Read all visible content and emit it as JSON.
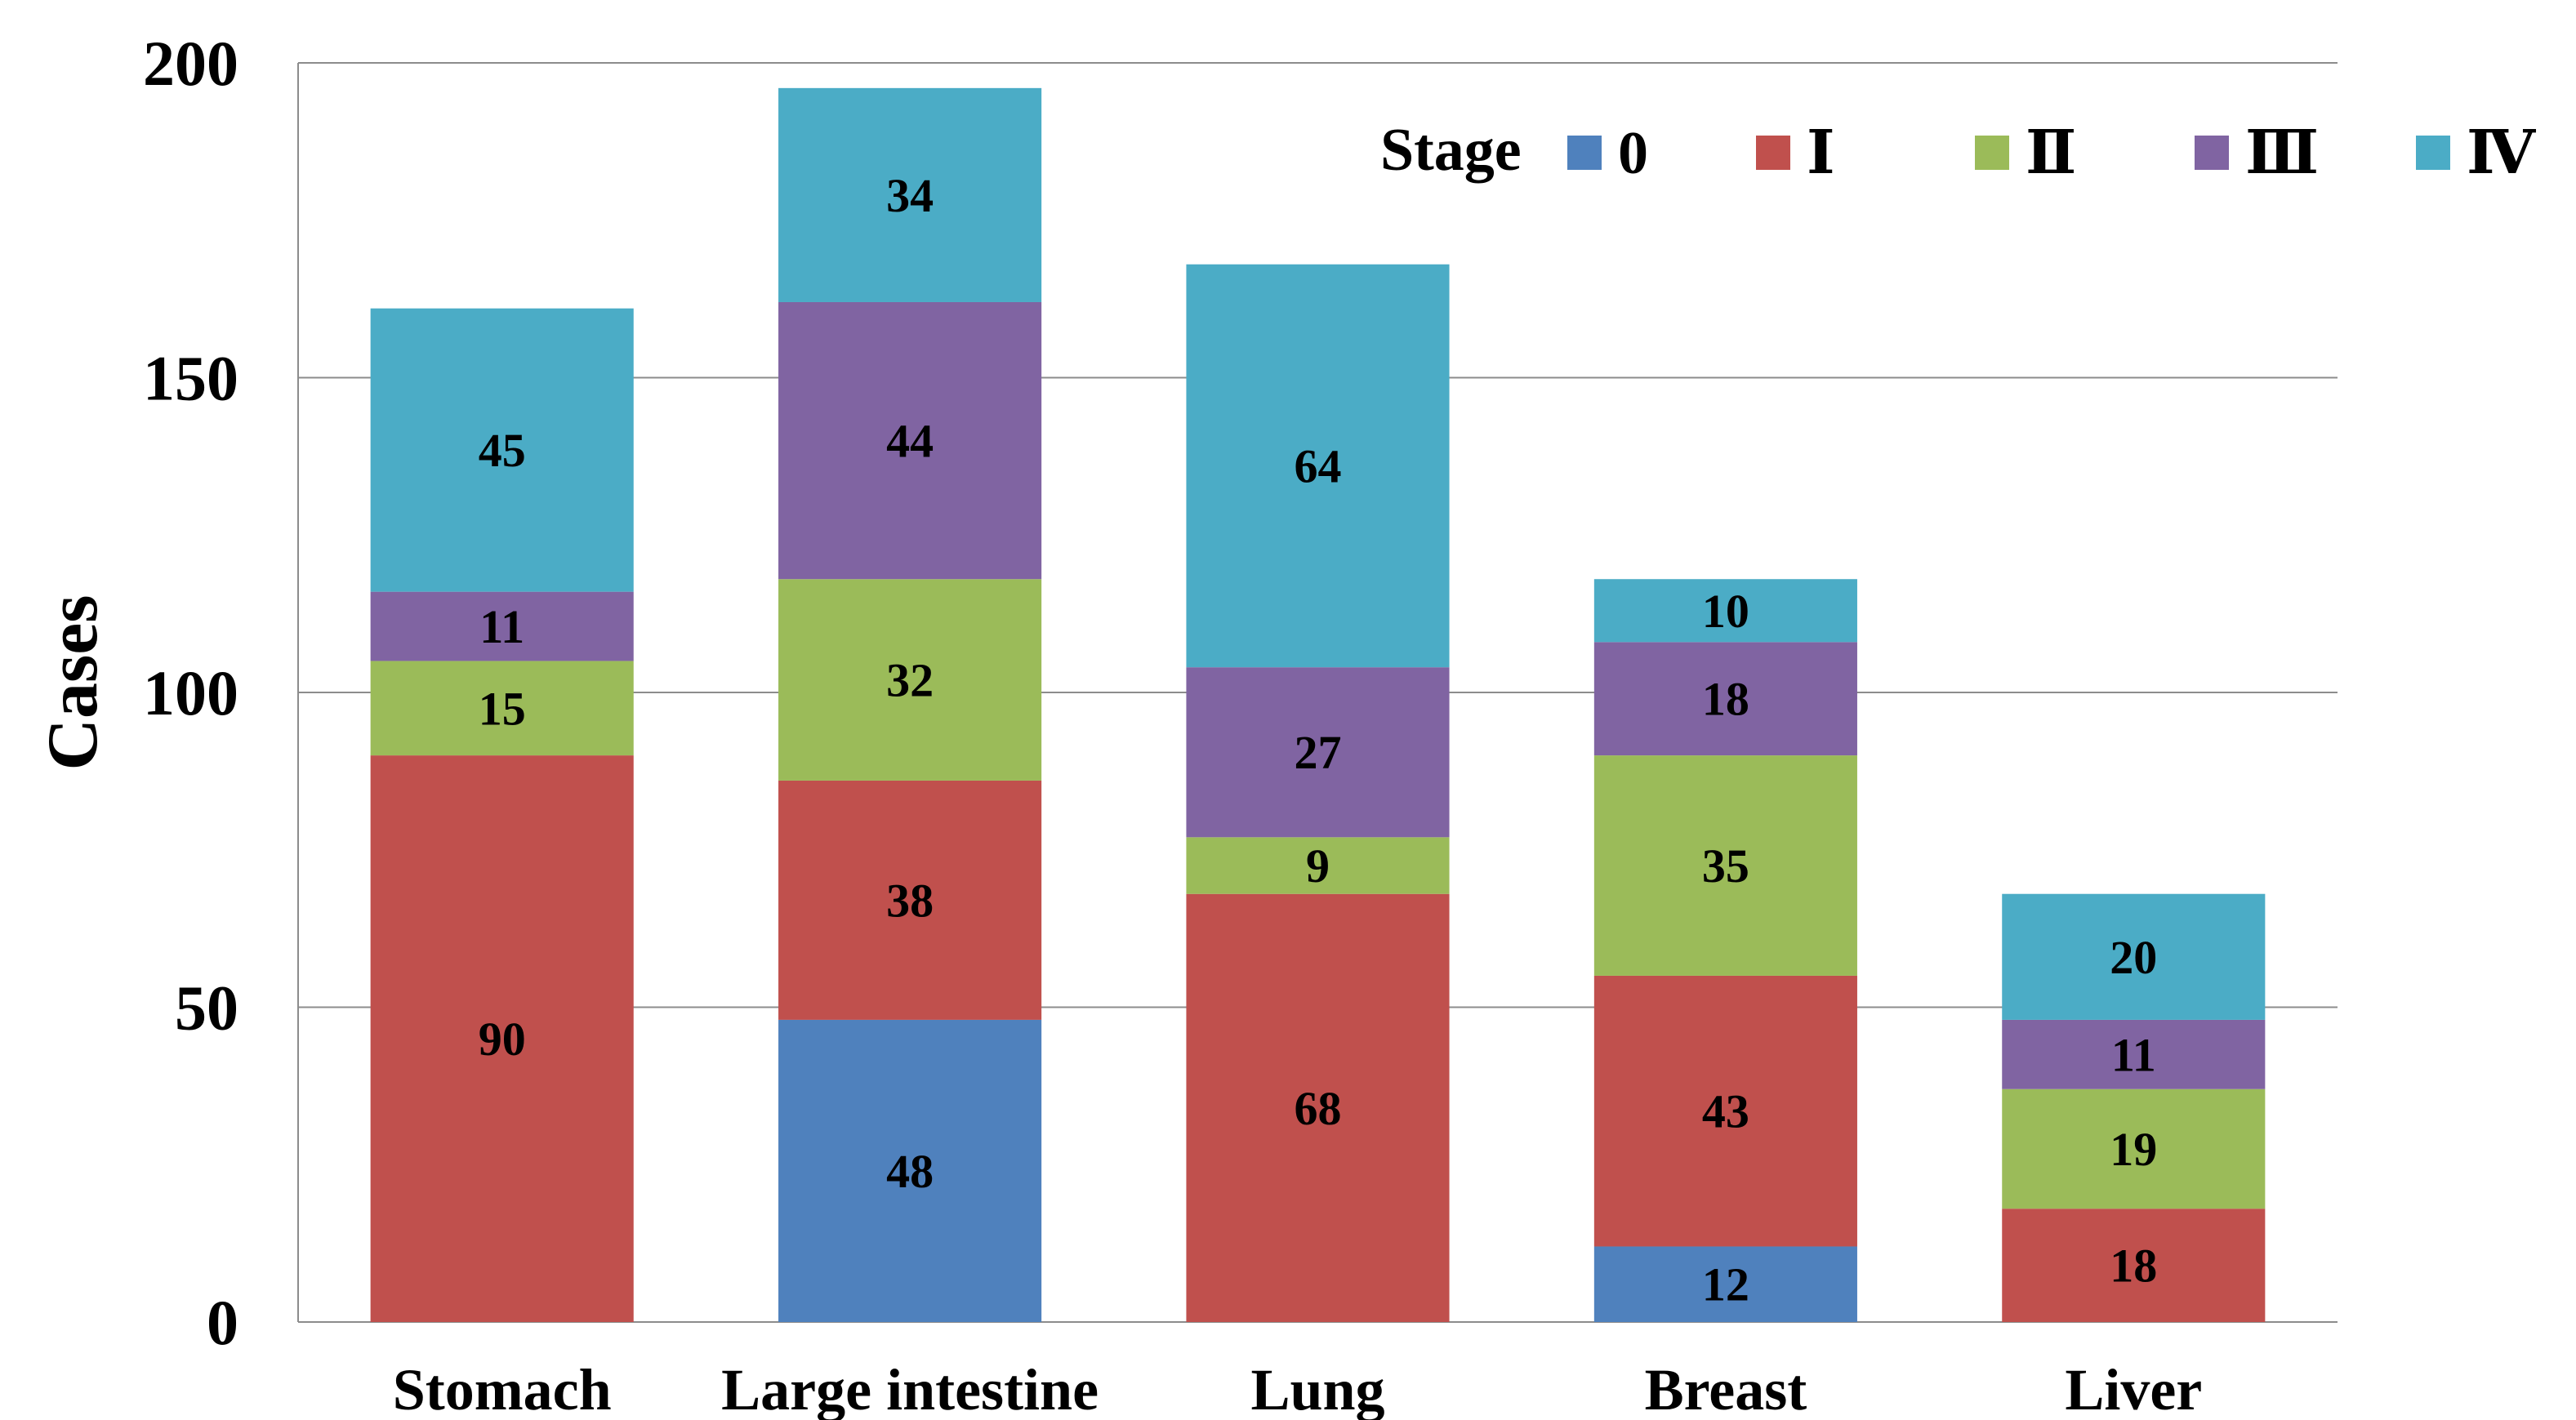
{
  "chart_data": {
    "type": "bar",
    "stacked": true,
    "title": "",
    "xlabel": "",
    "ylabel": "Cases",
    "ylim": [
      0,
      200
    ],
    "yticks": [
      0,
      50,
      100,
      150,
      200
    ],
    "grid": true,
    "legend_title": "Stage",
    "legend_position": "top-right",
    "categories": [
      "Stomach",
      "Large intestine",
      "Lung",
      "Breast",
      "Liver"
    ],
    "series": [
      {
        "name": "0",
        "color": "#4F81BD",
        "values": [
          0,
          48,
          0,
          12,
          0
        ]
      },
      {
        "name": "Ⅰ",
        "color": "#C0504D",
        "values": [
          90,
          38,
          68,
          43,
          18
        ]
      },
      {
        "name": "Ⅱ",
        "color": "#9BBB59",
        "values": [
          15,
          32,
          9,
          35,
          19
        ]
      },
      {
        "name": "Ⅲ",
        "color": "#8064A2",
        "values": [
          11,
          44,
          27,
          18,
          11
        ]
      },
      {
        "name": "Ⅳ",
        "color": "#4BACC6",
        "values": [
          45,
          34,
          64,
          10,
          20
        ]
      }
    ]
  }
}
